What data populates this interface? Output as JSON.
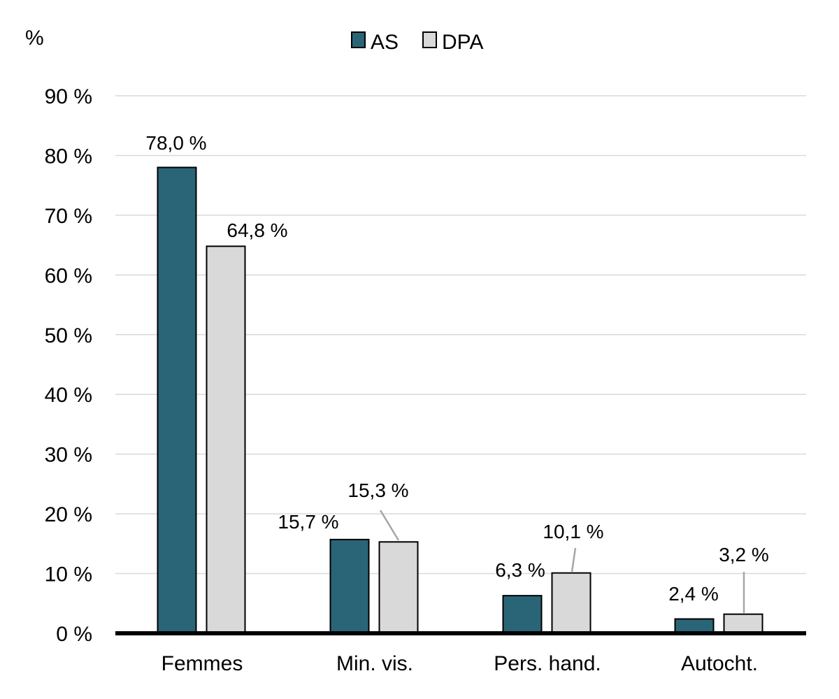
{
  "chart_data": {
    "type": "bar",
    "categories": [
      "Femmes",
      "Min. vis.",
      "Pers. hand.",
      "Autocht."
    ],
    "series": [
      {
        "name": "AS",
        "color": "#2a6577",
        "values": [
          78.0,
          15.7,
          6.3,
          2.4
        ],
        "labels": [
          "78,0 %",
          "15,7 %",
          "6,3 %",
          "2,4 %"
        ]
      },
      {
        "name": "DPA",
        "color": "#d9d9d9",
        "values": [
          64.8,
          15.3,
          10.1,
          3.2
        ],
        "labels": [
          "64,8 %",
          "15,3 %",
          "10,1 %",
          "3,2 %"
        ]
      }
    ],
    "y_unit_label": "%",
    "y_ticks": [
      "0 %",
      "10 %",
      "20 %",
      "30 %",
      "40 %",
      "50 %",
      "60 %",
      "70 %",
      "80 %",
      "90 %"
    ],
    "ylim": [
      0,
      90
    ],
    "grid": true,
    "legend_position": "top-center"
  }
}
